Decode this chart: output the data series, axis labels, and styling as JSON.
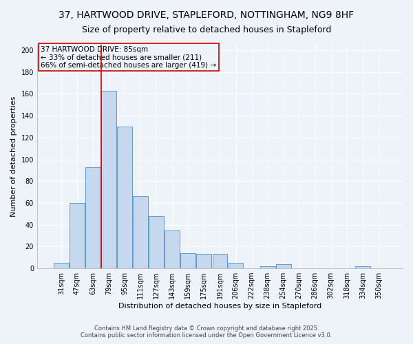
{
  "title_line1": "37, HARTWOOD DRIVE, STAPLEFORD, NOTTINGHAM, NG9 8HF",
  "title_line2": "Size of property relative to detached houses in Stapleford",
  "xlabel": "Distribution of detached houses by size in Stapleford",
  "ylabel": "Number of detached properties",
  "bar_color": "#c5d8ed",
  "bar_edge_color": "#5b9bd5",
  "vline_color": "#cc0000",
  "vline_x_index": 3,
  "categories": [
    "31sqm",
    "47sqm",
    "63sqm",
    "79sqm",
    "95sqm",
    "111sqm",
    "127sqm",
    "143sqm",
    "159sqm",
    "175sqm",
    "191sqm",
    "206sqm",
    "222sqm",
    "238sqm",
    "254sqm",
    "270sqm",
    "286sqm",
    "302sqm",
    "318sqm",
    "334sqm",
    "350sqm"
  ],
  "values": [
    5,
    60,
    93,
    163,
    130,
    66,
    48,
    35,
    14,
    13,
    13,
    5,
    0,
    2,
    4,
    0,
    0,
    0,
    0,
    2,
    0
  ],
  "ylim": [
    0,
    205
  ],
  "yticks": [
    0,
    20,
    40,
    60,
    80,
    100,
    120,
    140,
    160,
    180,
    200
  ],
  "annotation_text": "37 HARTWOOD DRIVE: 85sqm\n← 33% of detached houses are smaller (211)\n66% of semi-detached houses are larger (419) →",
  "footer_line1": "Contains HM Land Registry data © Crown copyright and database right 2025.",
  "footer_line2": "Contains public sector information licensed under the Open Government Licence v3.0.",
  "background_color": "#eef2f9",
  "grid_color": "#ffffff",
  "title_fontsize": 10,
  "label_fontsize": 8,
  "tick_fontsize": 7,
  "annotation_fontsize": 7.5
}
